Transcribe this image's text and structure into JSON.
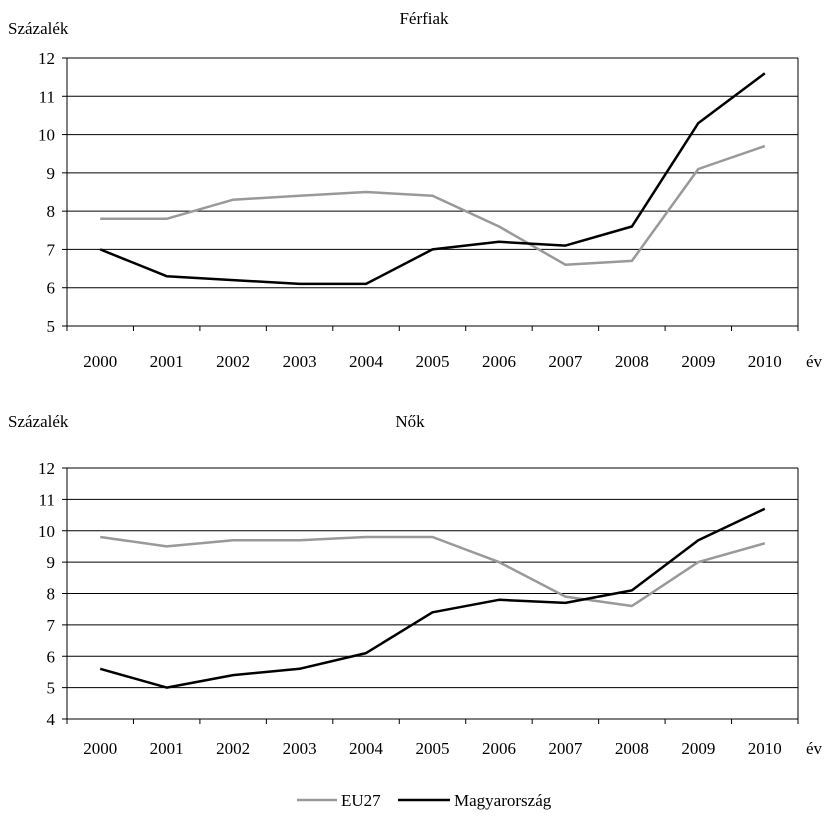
{
  "legend": {
    "placement": "bottom-center"
  },
  "chart_data": [
    {
      "type": "line",
      "title": "Férfiak",
      "ylabel": "Százalék",
      "xlabel": "év",
      "x": [
        "2000",
        "2001",
        "2002",
        "2003",
        "2004",
        "2005",
        "2006",
        "2007",
        "2008",
        "2009",
        "2010"
      ],
      "ylim": [
        5,
        12
      ],
      "yticks": [
        "5",
        "6",
        "7",
        "8",
        "9",
        "10",
        "11",
        "12"
      ],
      "grid": true,
      "series": [
        {
          "name": "EU27",
          "color": "#999999",
          "values": [
            7.8,
            7.8,
            8.3,
            8.4,
            8.5,
            8.4,
            7.6,
            6.6,
            6.7,
            9.1,
            9.7
          ]
        },
        {
          "name": "Magyarország",
          "color": "#000000",
          "values": [
            7.0,
            6.3,
            6.2,
            6.1,
            6.1,
            7.0,
            7.2,
            7.1,
            7.6,
            10.3,
            11.6
          ]
        }
      ]
    },
    {
      "type": "line",
      "title": "Nők",
      "ylabel": "Százalék",
      "xlabel": "év",
      "x": [
        "2000",
        "2001",
        "2002",
        "2003",
        "2004",
        "2005",
        "2006",
        "2007",
        "2008",
        "2009",
        "2010"
      ],
      "ylim": [
        4,
        12
      ],
      "yticks": [
        "4",
        "5",
        "6",
        "7",
        "8",
        "9",
        "10",
        "11",
        "12"
      ],
      "grid": true,
      "series": [
        {
          "name": "EU27",
          "color": "#999999",
          "values": [
            9.8,
            9.5,
            9.7,
            9.7,
            9.8,
            9.8,
            9.0,
            7.9,
            7.6,
            9.0,
            9.6
          ]
        },
        {
          "name": "Magyarország",
          "color": "#000000",
          "values": [
            5.6,
            5.0,
            5.4,
            5.6,
            6.1,
            7.4,
            7.8,
            7.7,
            8.1,
            9.7,
            10.7
          ]
        }
      ]
    }
  ]
}
